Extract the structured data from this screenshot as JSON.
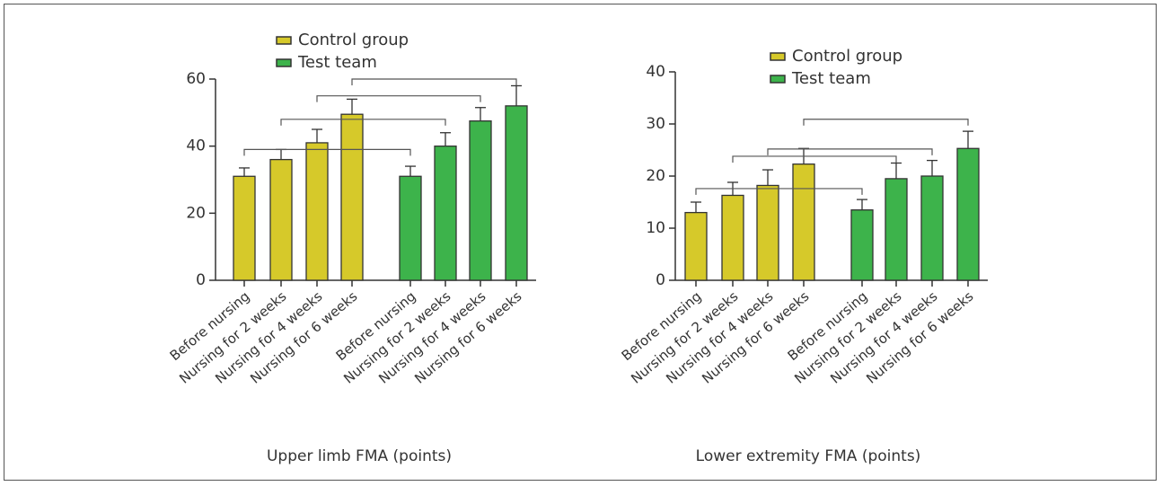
{
  "chart_data": [
    {
      "type": "bar",
      "x_label": "Upper limb FMA (points)",
      "categories": [
        "Before nursing",
        "Nursing for 2 weeks",
        "Nursing for 4 weeks",
        "Nursing for 6 weeks",
        "Before nursing",
        "Nursing for 2 weeks",
        "Nursing for 4 weeks",
        "Nursing for 6 weeks"
      ],
      "series": [
        {
          "name": "Control group",
          "color": "#d6c92a",
          "values": [
            31,
            36,
            41,
            49.5,
            null,
            null,
            null,
            null
          ],
          "errors": [
            2.5,
            3,
            4,
            4.5,
            null,
            null,
            null,
            null
          ]
        },
        {
          "name": "Test team",
          "color": "#3db34b",
          "values": [
            null,
            null,
            null,
            null,
            31,
            40,
            47.5,
            52
          ],
          "errors": [
            null,
            null,
            null,
            null,
            3,
            4,
            4,
            6
          ]
        }
      ],
      "brackets": [
        {
          "from": 0,
          "to": 4,
          "y": 39
        },
        {
          "from": 1,
          "to": 5,
          "y": 48
        },
        {
          "from": 2,
          "to": 6,
          "y": 55
        },
        {
          "from": 3,
          "to": 7,
          "y": 60
        }
      ],
      "ylim": [
        0,
        60
      ],
      "yticks": [
        0,
        20,
        40,
        60
      ]
    },
    {
      "type": "bar",
      "x_label": "Lower extremity FMA (points)",
      "categories": [
        "Before nursing",
        "Nursing for 2 weeks",
        "Nursing for 4 weeks",
        "Nursing for 6 weeks",
        "Before nursing",
        "Nursing for 2 weeks",
        "Nursing for 4 weeks",
        "Nursing for 6 weeks"
      ],
      "series": [
        {
          "name": "Control group",
          "color": "#d6c92a",
          "values": [
            13,
            16.3,
            18.2,
            22.3,
            null,
            null,
            null,
            null
          ],
          "errors": [
            2,
            2.5,
            3,
            3,
            null,
            null,
            null,
            null
          ]
        },
        {
          "name": "Test team",
          "color": "#3db34b",
          "values": [
            null,
            null,
            null,
            null,
            13.5,
            19.5,
            20,
            25.3
          ],
          "errors": [
            null,
            null,
            null,
            null,
            2,
            3,
            3,
            3.3
          ]
        }
      ],
      "brackets": [
        {
          "from": 0,
          "to": 4,
          "y": 17.6
        },
        {
          "from": 1,
          "to": 5,
          "y": 23.8
        },
        {
          "from": 2,
          "to": 6,
          "y": 25.2
        },
        {
          "from": 3,
          "to": 7,
          "y": 30.9
        }
      ],
      "ylim": [
        0,
        40
      ],
      "yticks": [
        0,
        10,
        20,
        30,
        40
      ]
    }
  ]
}
